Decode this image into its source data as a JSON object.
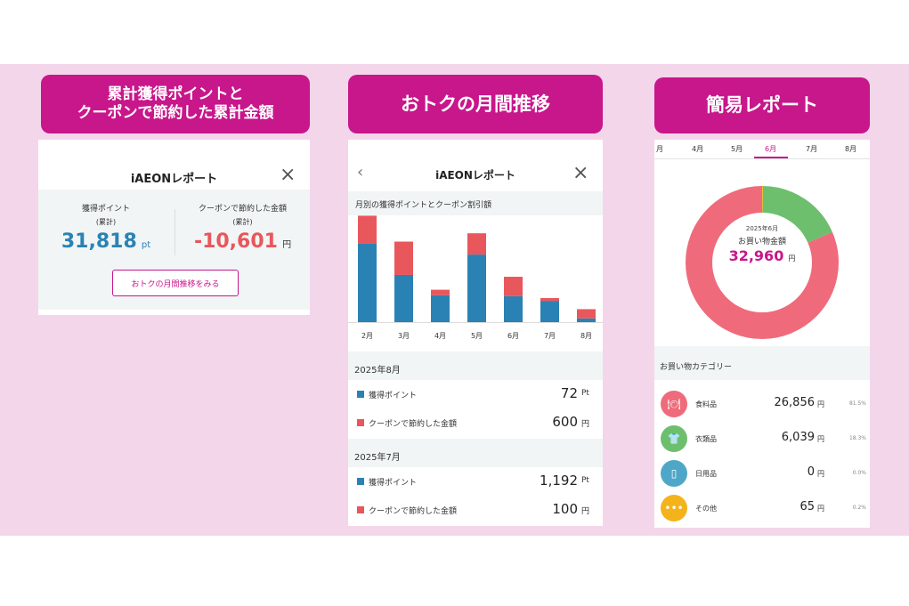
{
  "colors": {
    "band": "#f4d6ea",
    "pill": "#c8168b",
    "blue": "#2a82b4",
    "red": "#e8575c",
    "pink": "#ef6b7b",
    "green": "#6dbf6e",
    "teal": "#4fa7c8",
    "gold": "#f4b31a"
  },
  "pills": {
    "p1_line1": "累計獲得ポイントと",
    "p1_line2": "クーポンで節約した累計金額",
    "p2": "おトクの月間推移",
    "p3": "簡易レポート"
  },
  "panel1": {
    "title": "iAEONレポート",
    "points_label": "獲得ポイント",
    "points_sub": "(累計)",
    "points_value": "31,818",
    "points_unit": "pt",
    "savings_label": "クーポンで節約した金額",
    "savings_sub": "(累計)",
    "savings_value": "-10,601",
    "savings_unit": "円",
    "button": "おトクの月間推移をみる"
  },
  "panel2": {
    "title": "iAEONレポート",
    "chart_heading": "月別の獲得ポイントとクーポン割引額",
    "sections": [
      {
        "month": "2025年8月",
        "points_label": "獲得ポイント",
        "points_value": "72",
        "points_unit": "Pt",
        "coupon_label": "クーポンで節約した金額",
        "coupon_value": "600",
        "coupon_unit": "円"
      },
      {
        "month": "2025年7月",
        "points_label": "獲得ポイント",
        "points_value": "1,192",
        "points_unit": "Pt",
        "coupon_label": "クーポンで節約した金額",
        "coupon_value": "100",
        "coupon_unit": "円"
      }
    ]
  },
  "chart_data": {
    "type": "bar",
    "categories": [
      "2月",
      "3月",
      "4月",
      "5月",
      "6月",
      "7月",
      "8月"
    ],
    "series": [
      {
        "values": [
          8.5,
          5.1,
          2.9,
          7.3,
          2.8,
          2.3,
          0.4
        ]
      },
      {
        "values": [
          3.0,
          3.6,
          0.6,
          2.3,
          2.1,
          0.3,
          1.0
        ]
      }
    ],
    "stacked": true,
    "colors": [
      "#2a82b4",
      "#e8575c"
    ]
  },
  "panel3": {
    "tabs": [
      "月",
      "4月",
      "5月",
      "6月",
      "7月",
      "8月"
    ],
    "active_tab": 3,
    "donut_month": "2025年6月",
    "donut_label": "お買い物金額",
    "donut_value": "32,960",
    "donut_unit": "円",
    "donut_shares": [
      {
        "name": "食料品",
        "share": 81.5,
        "color": "#ef6b7b"
      },
      {
        "name": "衣類品",
        "share": 18.3,
        "color": "#6dbf6e"
      },
      {
        "name": "日用品",
        "share": 0.0,
        "color": "#4fa7c8"
      },
      {
        "name": "その他",
        "share": 0.2,
        "color": "#f4b31a"
      }
    ],
    "category_heading": "お買い物カテゴリー",
    "categories": [
      {
        "name": "食料品",
        "amount": "26,856",
        "unit": "円",
        "pct": "81.5%",
        "icon": "food-icon"
      },
      {
        "name": "衣類品",
        "amount": "6,039",
        "unit": "円",
        "pct": "18.3%",
        "icon": "shirt-icon"
      },
      {
        "name": "日用品",
        "amount": "0",
        "unit": "円",
        "pct": "0.0%",
        "icon": "bottle-icon"
      },
      {
        "name": "その他",
        "amount": "65",
        "unit": "円",
        "pct": "0.2%",
        "icon": "dots-icon"
      }
    ]
  }
}
